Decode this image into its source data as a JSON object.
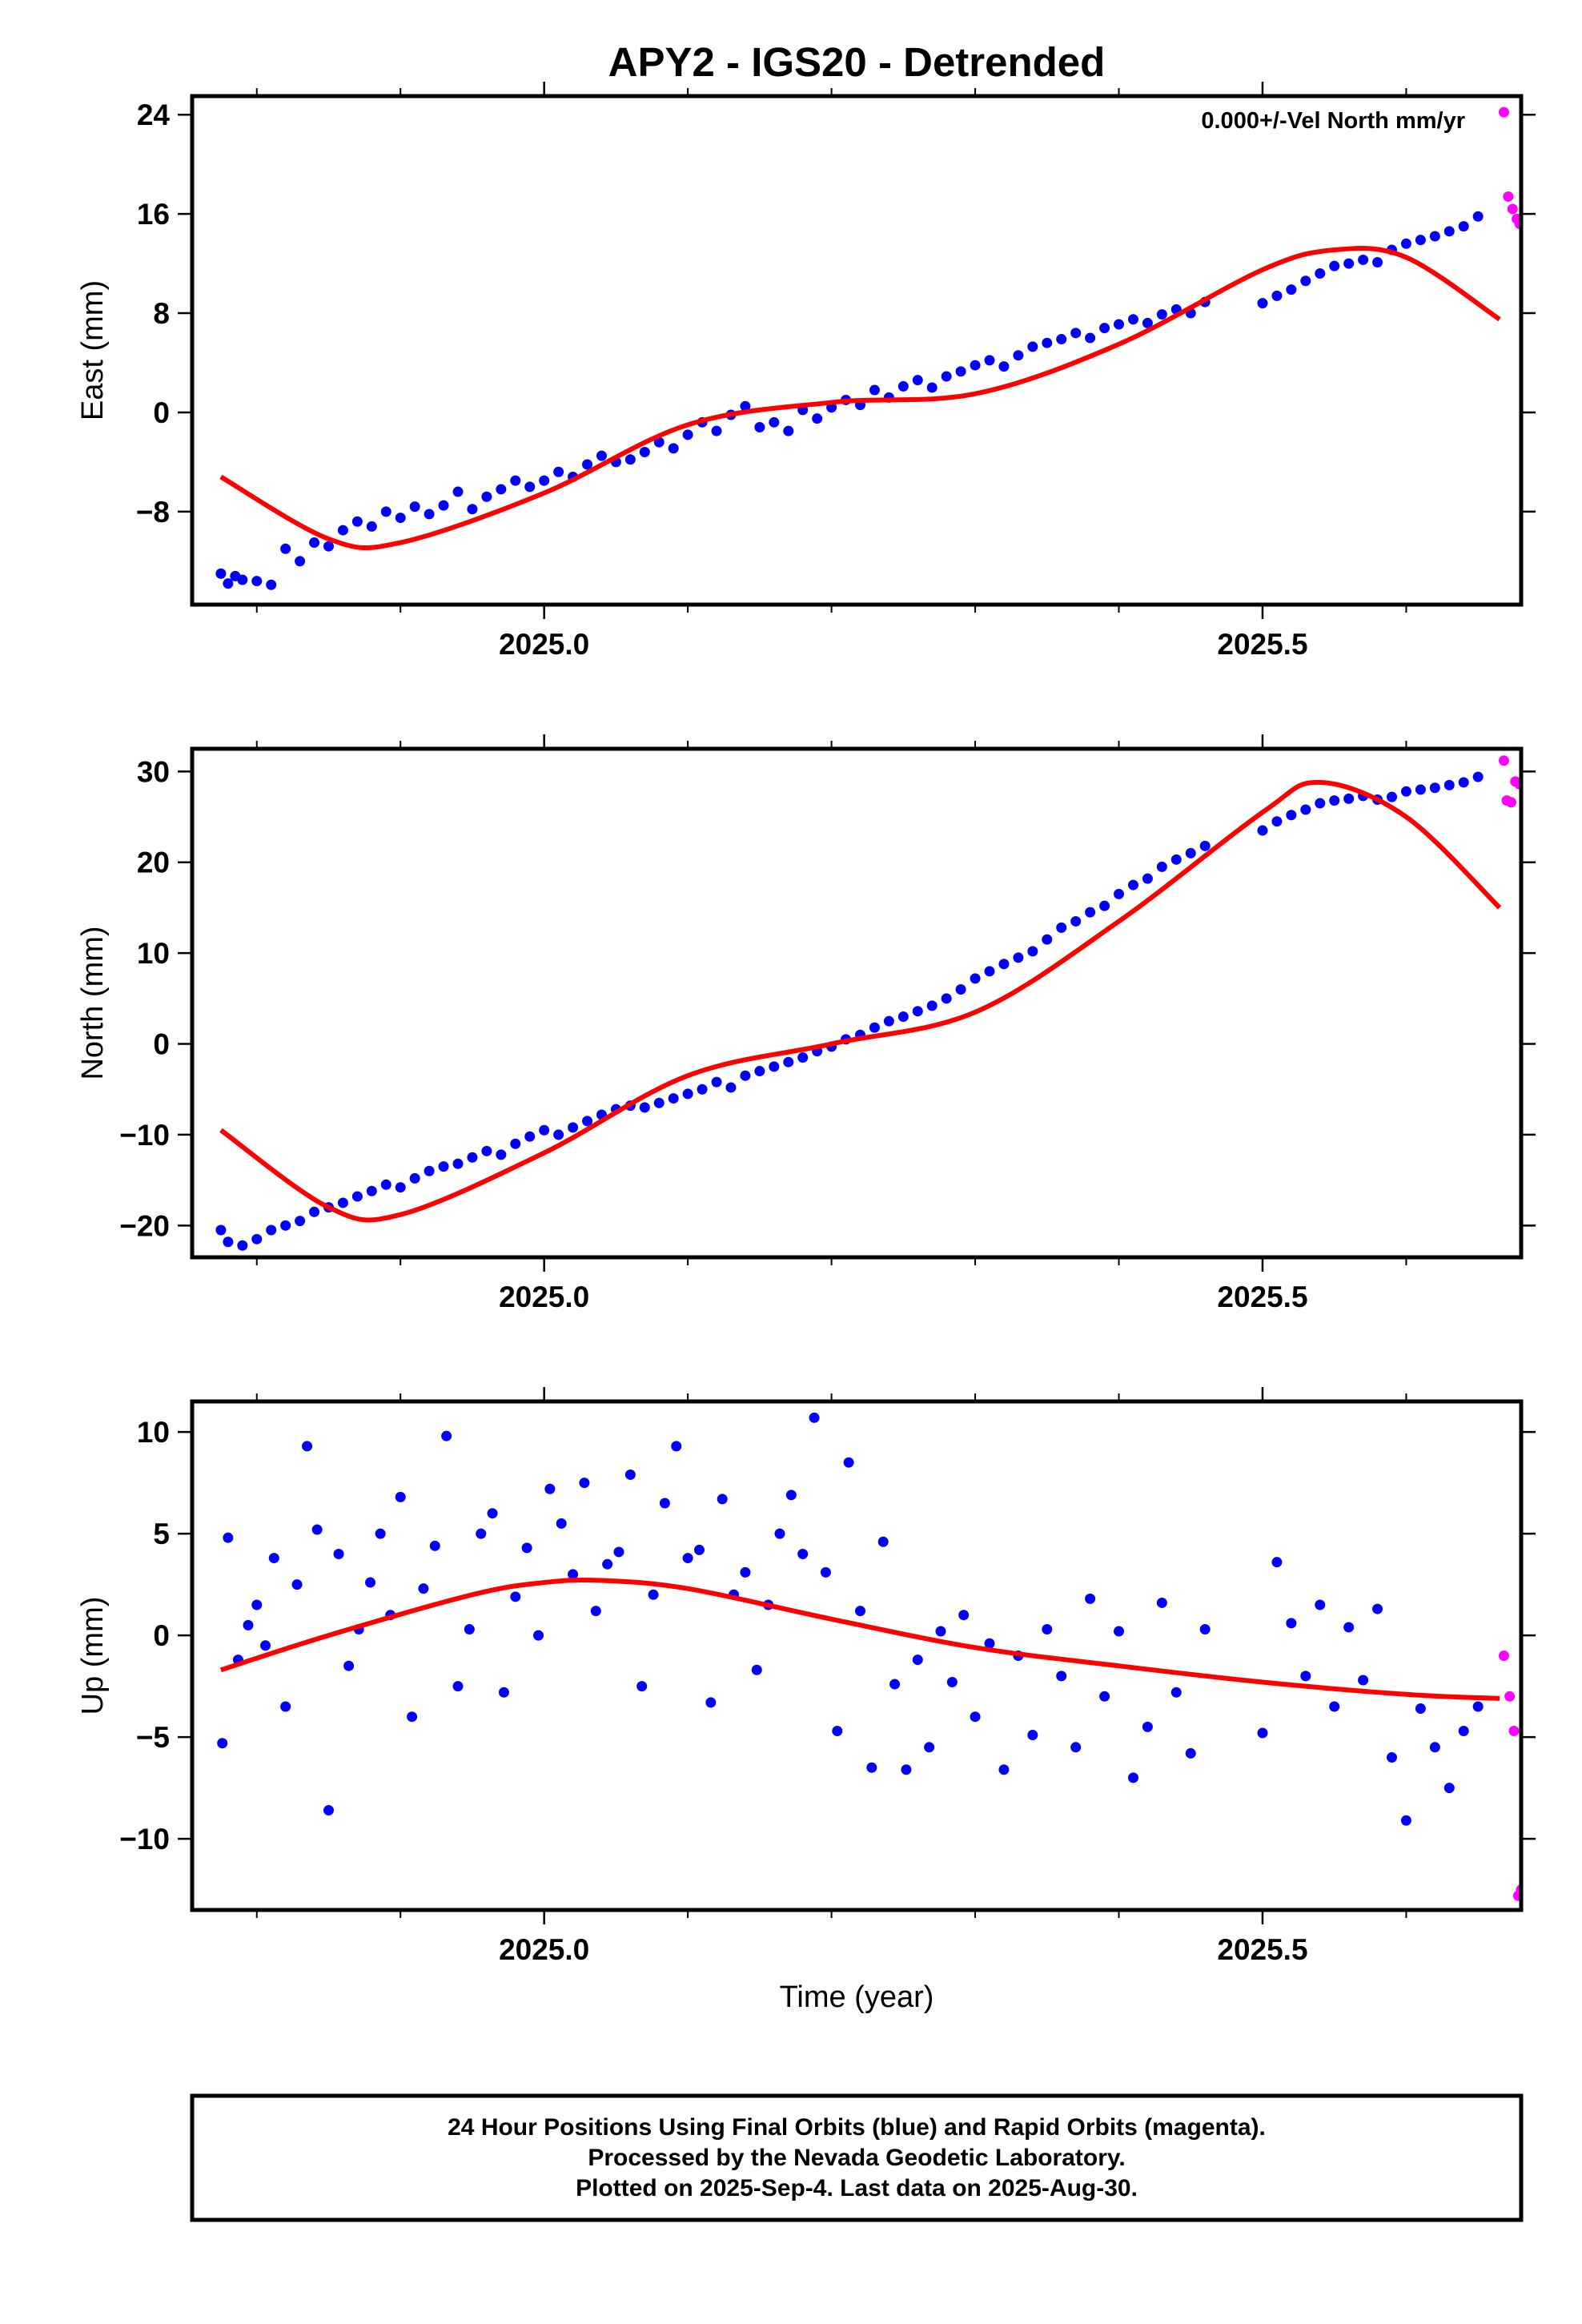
{
  "title": "APY2 - IGS20 - Detrended",
  "colors": {
    "final": "#0000ff",
    "rapid": "#ff00ff",
    "fit": "#ff0000",
    "frame": "#000000"
  },
  "xlabel": "Time (year)",
  "footer": {
    "line1": "24 Hour Positions Using Final Orbits (blue) and Rapid Orbits (magenta).",
    "line2": "Processed by the Nevada Geodetic Laboratory.",
    "line3": "Plotted on 2025-Sep-4. Last data on 2025-Aug-30."
  },
  "chart_data": [
    {
      "type": "scatter",
      "ylabel": "East (mm)",
      "annotation": "0.000+/-Vel North mm/yr",
      "xlim": [
        2024.755,
        2025.68
      ],
      "ylim": [
        -15.5,
        25.5
      ],
      "x_ticks": [
        2025.0,
        2025.5
      ],
      "x_tick_labels": [
        "2025.0",
        "2025.5"
      ],
      "y_ticks": [
        24,
        16,
        8,
        0,
        -8
      ],
      "y_tick_labels": [
        "24",
        "16",
        "8",
        "0",
        "−8"
      ],
      "fit": {
        "x": [
          2024.775,
          2024.85,
          2024.9,
          2025.0,
          2025.1,
          2025.2,
          2025.3,
          2025.4,
          2025.5,
          2025.55,
          2025.6,
          2025.665
        ],
        "y": [
          -5.2,
          -10.2,
          -10.5,
          -6.5,
          -1.0,
          0.8,
          1.5,
          5.5,
          11.5,
          13.1,
          12.5,
          7.5
        ]
      },
      "series": [
        {
          "name": "Final Orbits (blue)",
          "x": [
            2024.775,
            2024.78,
            2024.785,
            2024.79,
            2024.8,
            2024.81,
            2024.82,
            2024.83,
            2024.84,
            2024.85,
            2024.86,
            2024.87,
            2024.88,
            2024.89,
            2024.9,
            2024.91,
            2024.92,
            2024.93,
            2024.94,
            2024.95,
            2024.96,
            2024.97,
            2024.98,
            2024.99,
            2025.0,
            2025.01,
            2025.02,
            2025.03,
            2025.04,
            2025.05,
            2025.06,
            2025.07,
            2025.08,
            2025.09,
            2025.1,
            2025.11,
            2025.12,
            2025.13,
            2025.14,
            2025.15,
            2025.16,
            2025.17,
            2025.18,
            2025.19,
            2025.2,
            2025.21,
            2025.22,
            2025.23,
            2025.24,
            2025.25,
            2025.26,
            2025.27,
            2025.28,
            2025.29,
            2025.3,
            2025.31,
            2025.32,
            2025.33,
            2025.34,
            2025.35,
            2025.36,
            2025.37,
            2025.38,
            2025.39,
            2025.4,
            2025.41,
            2025.42,
            2025.43,
            2025.44,
            2025.45,
            2025.46,
            2025.5,
            2025.51,
            2025.52,
            2025.53,
            2025.54,
            2025.55,
            2025.56,
            2025.57,
            2025.58,
            2025.59,
            2025.6,
            2025.61,
            2025.62,
            2025.63,
            2025.64,
            2025.65
          ],
          "y": [
            -13.0,
            -13.8,
            -13.2,
            -13.5,
            -13.6,
            -13.9,
            -11.0,
            -12.0,
            -10.5,
            -10.8,
            -9.5,
            -8.8,
            -9.2,
            -8.0,
            -8.5,
            -7.6,
            -8.2,
            -7.5,
            -6.4,
            -7.8,
            -6.8,
            -6.2,
            -5.5,
            -6.0,
            -5.5,
            -4.8,
            -5.2,
            -4.2,
            -3.5,
            -4.0,
            -3.8,
            -3.2,
            -2.4,
            -2.9,
            -1.8,
            -0.8,
            -1.5,
            -0.2,
            0.5,
            -1.2,
            -0.8,
            -1.5,
            0.2,
            -0.5,
            0.4,
            1.0,
            0.6,
            1.8,
            1.2,
            2.1,
            2.6,
            2.0,
            2.9,
            3.3,
            3.8,
            4.2,
            3.7,
            4.6,
            5.3,
            5.6,
            5.9,
            6.4,
            6.0,
            6.8,
            7.1,
            7.5,
            7.2,
            7.9,
            8.3,
            8.0,
            8.9,
            8.8,
            9.4,
            9.9,
            10.6,
            11.2,
            11.8,
            12.0,
            12.3,
            12.1,
            13.1,
            13.6,
            13.9,
            14.2,
            14.6,
            15.0,
            15.8
          ]
        },
        {
          "name": "Rapid Orbits (magenta)",
          "x": [
            2025.668,
            2025.671,
            2025.674,
            2025.677,
            2025.679
          ],
          "y": [
            24.2,
            17.4,
            16.4,
            15.6,
            15.2
          ]
        }
      ]
    },
    {
      "type": "scatter",
      "ylabel": "North (mm)",
      "xlim": [
        2024.755,
        2025.68
      ],
      "ylim": [
        -23.5,
        32.5
      ],
      "x_ticks": [
        2025.0,
        2025.5
      ],
      "x_tick_labels": [
        "2025.0",
        "2025.5"
      ],
      "y_ticks": [
        30,
        20,
        10,
        0,
        -10,
        -20
      ],
      "y_tick_labels": [
        "30",
        "20",
        "10",
        "0",
        "−10",
        "−20"
      ],
      "fit": {
        "x": [
          2024.775,
          2024.85,
          2024.9,
          2025.0,
          2025.1,
          2025.2,
          2025.3,
          2025.4,
          2025.5,
          2025.54,
          2025.6,
          2025.665
        ],
        "y": [
          -9.5,
          -18.0,
          -18.8,
          -12.0,
          -3.5,
          0.0,
          3.5,
          13.5,
          25.5,
          28.8,
          25.0,
          15.0
        ]
      },
      "series": [
        {
          "name": "Final Orbits (blue)",
          "x": [
            2024.775,
            2024.78,
            2024.79,
            2024.8,
            2024.81,
            2024.82,
            2024.83,
            2024.84,
            2024.85,
            2024.86,
            2024.87,
            2024.88,
            2024.89,
            2024.9,
            2024.91,
            2024.92,
            2024.93,
            2024.94,
            2024.95,
            2024.96,
            2024.97,
            2024.98,
            2024.99,
            2025.0,
            2025.01,
            2025.02,
            2025.03,
            2025.04,
            2025.05,
            2025.06,
            2025.07,
            2025.08,
            2025.09,
            2025.1,
            2025.11,
            2025.12,
            2025.13,
            2025.14,
            2025.15,
            2025.16,
            2025.17,
            2025.18,
            2025.19,
            2025.2,
            2025.21,
            2025.22,
            2025.23,
            2025.24,
            2025.25,
            2025.26,
            2025.27,
            2025.28,
            2025.29,
            2025.3,
            2025.31,
            2025.32,
            2025.33,
            2025.34,
            2025.35,
            2025.36,
            2025.37,
            2025.38,
            2025.39,
            2025.4,
            2025.41,
            2025.42,
            2025.43,
            2025.44,
            2025.45,
            2025.46,
            2025.5,
            2025.51,
            2025.52,
            2025.53,
            2025.54,
            2025.55,
            2025.56,
            2025.57,
            2025.58,
            2025.59,
            2025.6,
            2025.61,
            2025.62,
            2025.63,
            2025.64,
            2025.65
          ],
          "y": [
            -20.5,
            -21.8,
            -22.2,
            -21.5,
            -20.5,
            -20.0,
            -19.5,
            -18.5,
            -18.0,
            -17.5,
            -16.8,
            -16.2,
            -15.5,
            -15.8,
            -14.8,
            -14.0,
            -13.5,
            -13.2,
            -12.5,
            -11.8,
            -12.2,
            -11.0,
            -10.2,
            -9.5,
            -10.0,
            -9.2,
            -8.5,
            -7.8,
            -7.2,
            -6.8,
            -7.0,
            -6.5,
            -6.0,
            -5.5,
            -5.0,
            -4.2,
            -4.8,
            -3.5,
            -3.0,
            -2.5,
            -2.0,
            -1.5,
            -0.8,
            -0.3,
            0.5,
            1.0,
            1.8,
            2.5,
            3.0,
            3.6,
            4.2,
            5.0,
            6.0,
            7.2,
            8.0,
            8.8,
            9.5,
            10.2,
            11.5,
            12.8,
            13.5,
            14.5,
            15.2,
            16.5,
            17.5,
            18.2,
            19.5,
            20.3,
            21.0,
            21.8,
            23.5,
            24.5,
            25.2,
            25.8,
            26.5,
            26.8,
            27.0,
            27.3,
            26.9,
            27.2,
            27.8,
            28.0,
            28.2,
            28.5,
            28.8,
            29.4
          ]
        },
        {
          "name": "Rapid Orbits (magenta)",
          "x": [
            2025.668,
            2025.67,
            2025.673,
            2025.676,
            2025.679
          ],
          "y": [
            31.2,
            26.8,
            26.6,
            28.9,
            28.6
          ]
        }
      ]
    },
    {
      "type": "scatter",
      "ylabel": "Up (mm)",
      "xlabel": "Time (year)",
      "xlim": [
        2024.755,
        2025.68
      ],
      "ylim": [
        -13.5,
        11.5
      ],
      "x_ticks": [
        2025.0,
        2025.5
      ],
      "x_tick_labels": [
        "2025.0",
        "2025.5"
      ],
      "y_ticks": [
        10,
        5,
        0,
        -5,
        -10
      ],
      "y_tick_labels": [
        "10",
        "5",
        "0",
        "−5",
        "−10"
      ],
      "fit": {
        "x": [
          2024.775,
          2024.85,
          2024.95,
          2025.0,
          2025.04,
          2025.1,
          2025.2,
          2025.3,
          2025.4,
          2025.5,
          2025.6,
          2025.665
        ],
        "y": [
          -1.7,
          0.0,
          2.0,
          2.6,
          2.7,
          2.3,
          0.8,
          -0.6,
          -1.5,
          -2.3,
          -2.9,
          -3.1
        ]
      },
      "series": [
        {
          "name": "Final Orbits (blue)",
          "x": [
            2024.776,
            2024.78,
            2024.787,
            2024.794,
            2024.8,
            2024.806,
            2024.812,
            2024.82,
            2024.828,
            2024.835,
            2024.842,
            2024.85,
            2024.857,
            2024.864,
            2024.871,
            2024.879,
            2024.886,
            2024.893,
            2024.9,
            2024.908,
            2024.916,
            2024.924,
            2024.932,
            2024.94,
            2024.948,
            2024.956,
            2024.964,
            2024.972,
            2024.98,
            2024.988,
            2024.996,
            2025.004,
            2025.012,
            2025.02,
            2025.028,
            2025.036,
            2025.044,
            2025.052,
            2025.06,
            2025.068,
            2025.076,
            2025.084,
            2025.092,
            2025.1,
            2025.108,
            2025.116,
            2025.124,
            2025.132,
            2025.14,
            2025.148,
            2025.156,
            2025.164,
            2025.172,
            2025.18,
            2025.188,
            2025.196,
            2025.204,
            2025.212,
            2025.22,
            2025.228,
            2025.236,
            2025.244,
            2025.252,
            2025.26,
            2025.268,
            2025.276,
            2025.284,
            2025.292,
            2025.3,
            2025.31,
            2025.32,
            2025.33,
            2025.34,
            2025.35,
            2025.36,
            2025.37,
            2025.38,
            2025.39,
            2025.4,
            2025.41,
            2025.42,
            2025.43,
            2025.44,
            2025.45,
            2025.46,
            2025.5,
            2025.51,
            2025.52,
            2025.53,
            2025.54,
            2025.55,
            2025.56,
            2025.57,
            2025.58,
            2025.59,
            2025.6,
            2025.61,
            2025.62,
            2025.63,
            2025.64,
            2025.65
          ],
          "y": [
            -5.3,
            4.8,
            -1.2,
            0.5,
            1.5,
            -0.5,
            3.8,
            -3.5,
            2.5,
            9.3,
            5.2,
            -8.6,
            4.0,
            -1.5,
            0.3,
            2.6,
            5.0,
            1.0,
            6.8,
            -4.0,
            2.3,
            4.4,
            9.8,
            -2.5,
            0.3,
            5.0,
            6.0,
            -2.8,
            1.9,
            4.3,
            0.0,
            7.2,
            5.5,
            3.0,
            7.5,
            1.2,
            3.5,
            4.1,
            7.9,
            -2.5,
            2.0,
            6.5,
            9.3,
            3.8,
            4.2,
            -3.3,
            6.7,
            2.0,
            3.1,
            -1.7,
            1.5,
            5.0,
            6.9,
            4.0,
            10.7,
            3.1,
            -4.7,
            8.5,
            1.2,
            -6.5,
            4.6,
            -2.4,
            -6.6,
            -1.2,
            -5.5,
            0.2,
            -2.3,
            1.0,
            -4.0,
            -0.4,
            -6.6,
            -1.0,
            -4.9,
            0.3,
            -2.0,
            -5.5,
            1.8,
            -3.0,
            0.2,
            -7.0,
            -4.5,
            1.6,
            -2.8,
            -5.8,
            0.3,
            -4.8,
            3.6,
            0.6,
            -2.0,
            1.5,
            -3.5,
            0.4,
            -2.2,
            1.3,
            -6.0,
            -9.1,
            -3.6,
            -5.5,
            -7.5,
            -4.7,
            -3.5
          ]
        },
        {
          "name": "Rapid Orbits (magenta)",
          "x": [
            2025.668,
            2025.672,
            2025.675,
            2025.678,
            2025.68
          ],
          "y": [
            -1.0,
            -3.0,
            -4.7,
            -12.8,
            -12.5
          ]
        }
      ]
    }
  ]
}
